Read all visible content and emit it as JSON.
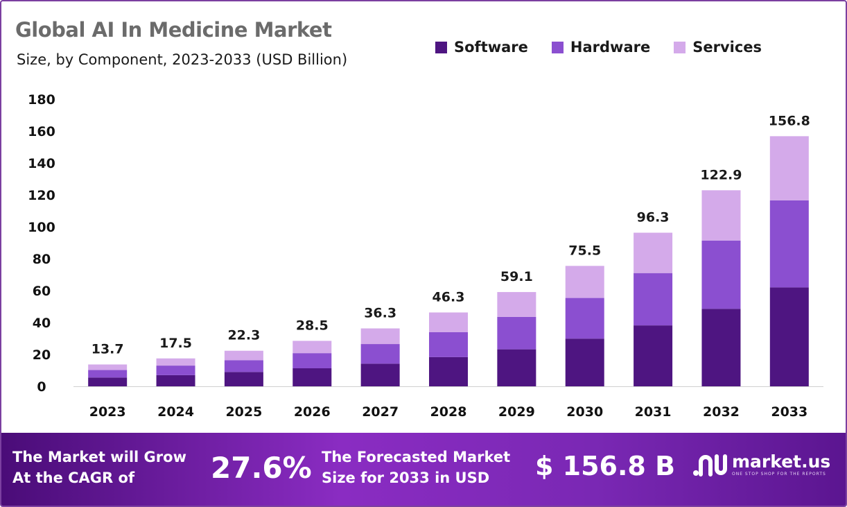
{
  "chart_data": {
    "type": "bar",
    "stacked": true,
    "title": "Global AI In Medicine Market",
    "subtitle": "Size, by Component, 2023-2033 (USD Billion)",
    "categories": [
      "2023",
      "2024",
      "2025",
      "2026",
      "2027",
      "2028",
      "2029",
      "2030",
      "2031",
      "2032",
      "2033"
    ],
    "series": [
      {
        "name": "Software",
        "color": "#4e1581",
        "values": [
          5.5,
          7.0,
          9.0,
          11.3,
          14.2,
          18.3,
          23.2,
          29.9,
          38.2,
          48.6,
          62.0
        ]
      },
      {
        "name": "Hardware",
        "color": "#8b4fd0",
        "values": [
          4.7,
          6.0,
          7.4,
          9.5,
          12.3,
          15.7,
          20.3,
          25.5,
          32.8,
          42.8,
          54.6
        ]
      },
      {
        "name": "Services",
        "color": "#d4aaea",
        "values": [
          3.5,
          4.5,
          5.9,
          7.7,
          9.8,
          12.3,
          15.6,
          20.1,
          25.3,
          31.5,
          40.2
        ]
      }
    ],
    "totals": [
      "13.7",
      "17.5",
      "22.3",
      "28.5",
      "36.3",
      "46.3",
      "59.1",
      "75.5",
      "96.3",
      "122.9",
      "156.8"
    ],
    "ylim": [
      0,
      180
    ],
    "yticks": [
      "0",
      "20",
      "40",
      "60",
      "80",
      "100",
      "120",
      "140",
      "160",
      "180"
    ],
    "legend": "top-right",
    "grid": false
  },
  "banner": {
    "cagr_label_line1": "The Market will Grow",
    "cagr_label_line2": "At the CAGR of",
    "cagr_value": "27.6%",
    "forecast_label_line1": "The Forecasted Market",
    "forecast_label_line2": "Size for 2033 in USD",
    "forecast_value": "$ 156.8 B",
    "brand_name": "market.us",
    "brand_tagline": "ONE STOP SHOP FOR THE REPORTS"
  }
}
